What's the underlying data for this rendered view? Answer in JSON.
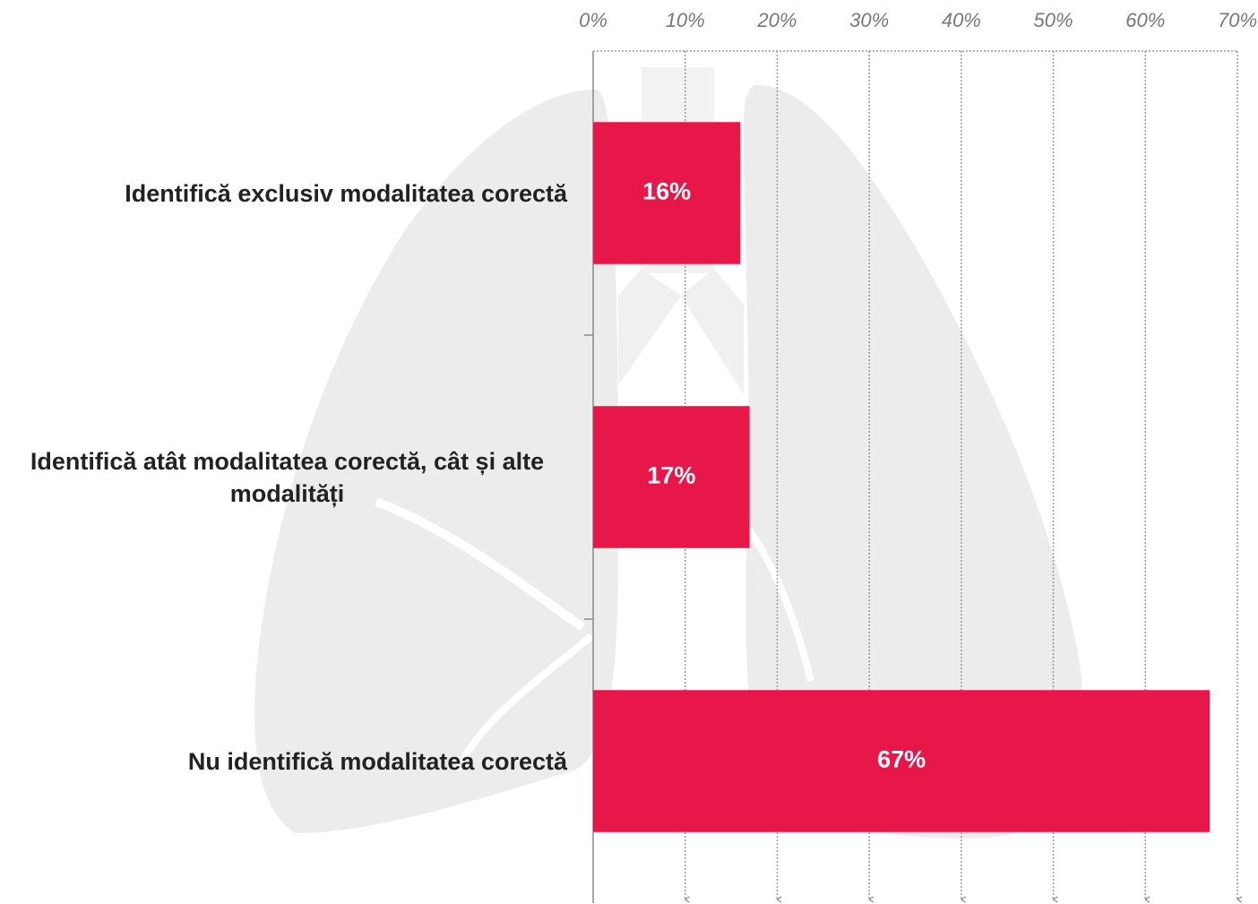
{
  "chart_data": {
    "type": "hbar",
    "categories": [
      "Identifică exclusiv modalitatea corectă",
      "Identifică atât modalitatea corectă, cât și alte modalități",
      "Nu identifică modalitatea corectă"
    ],
    "values": [
      16,
      17,
      67
    ],
    "value_labels": [
      "16%",
      "17%",
      "67%"
    ],
    "color": "#e8174a",
    "xlim": [
      0,
      70
    ],
    "xticks": [
      {
        "value": 0,
        "label": "0%"
      },
      {
        "value": 10,
        "label": "10%"
      },
      {
        "value": 20,
        "label": "20%"
      },
      {
        "value": 30,
        "label": "30%"
      },
      {
        "value": 40,
        "label": "40%"
      },
      {
        "value": 50,
        "label": "50%"
      },
      {
        "value": 60,
        "label": "60%"
      },
      {
        "value": 70,
        "label": "70%"
      }
    ],
    "grid": true
  }
}
